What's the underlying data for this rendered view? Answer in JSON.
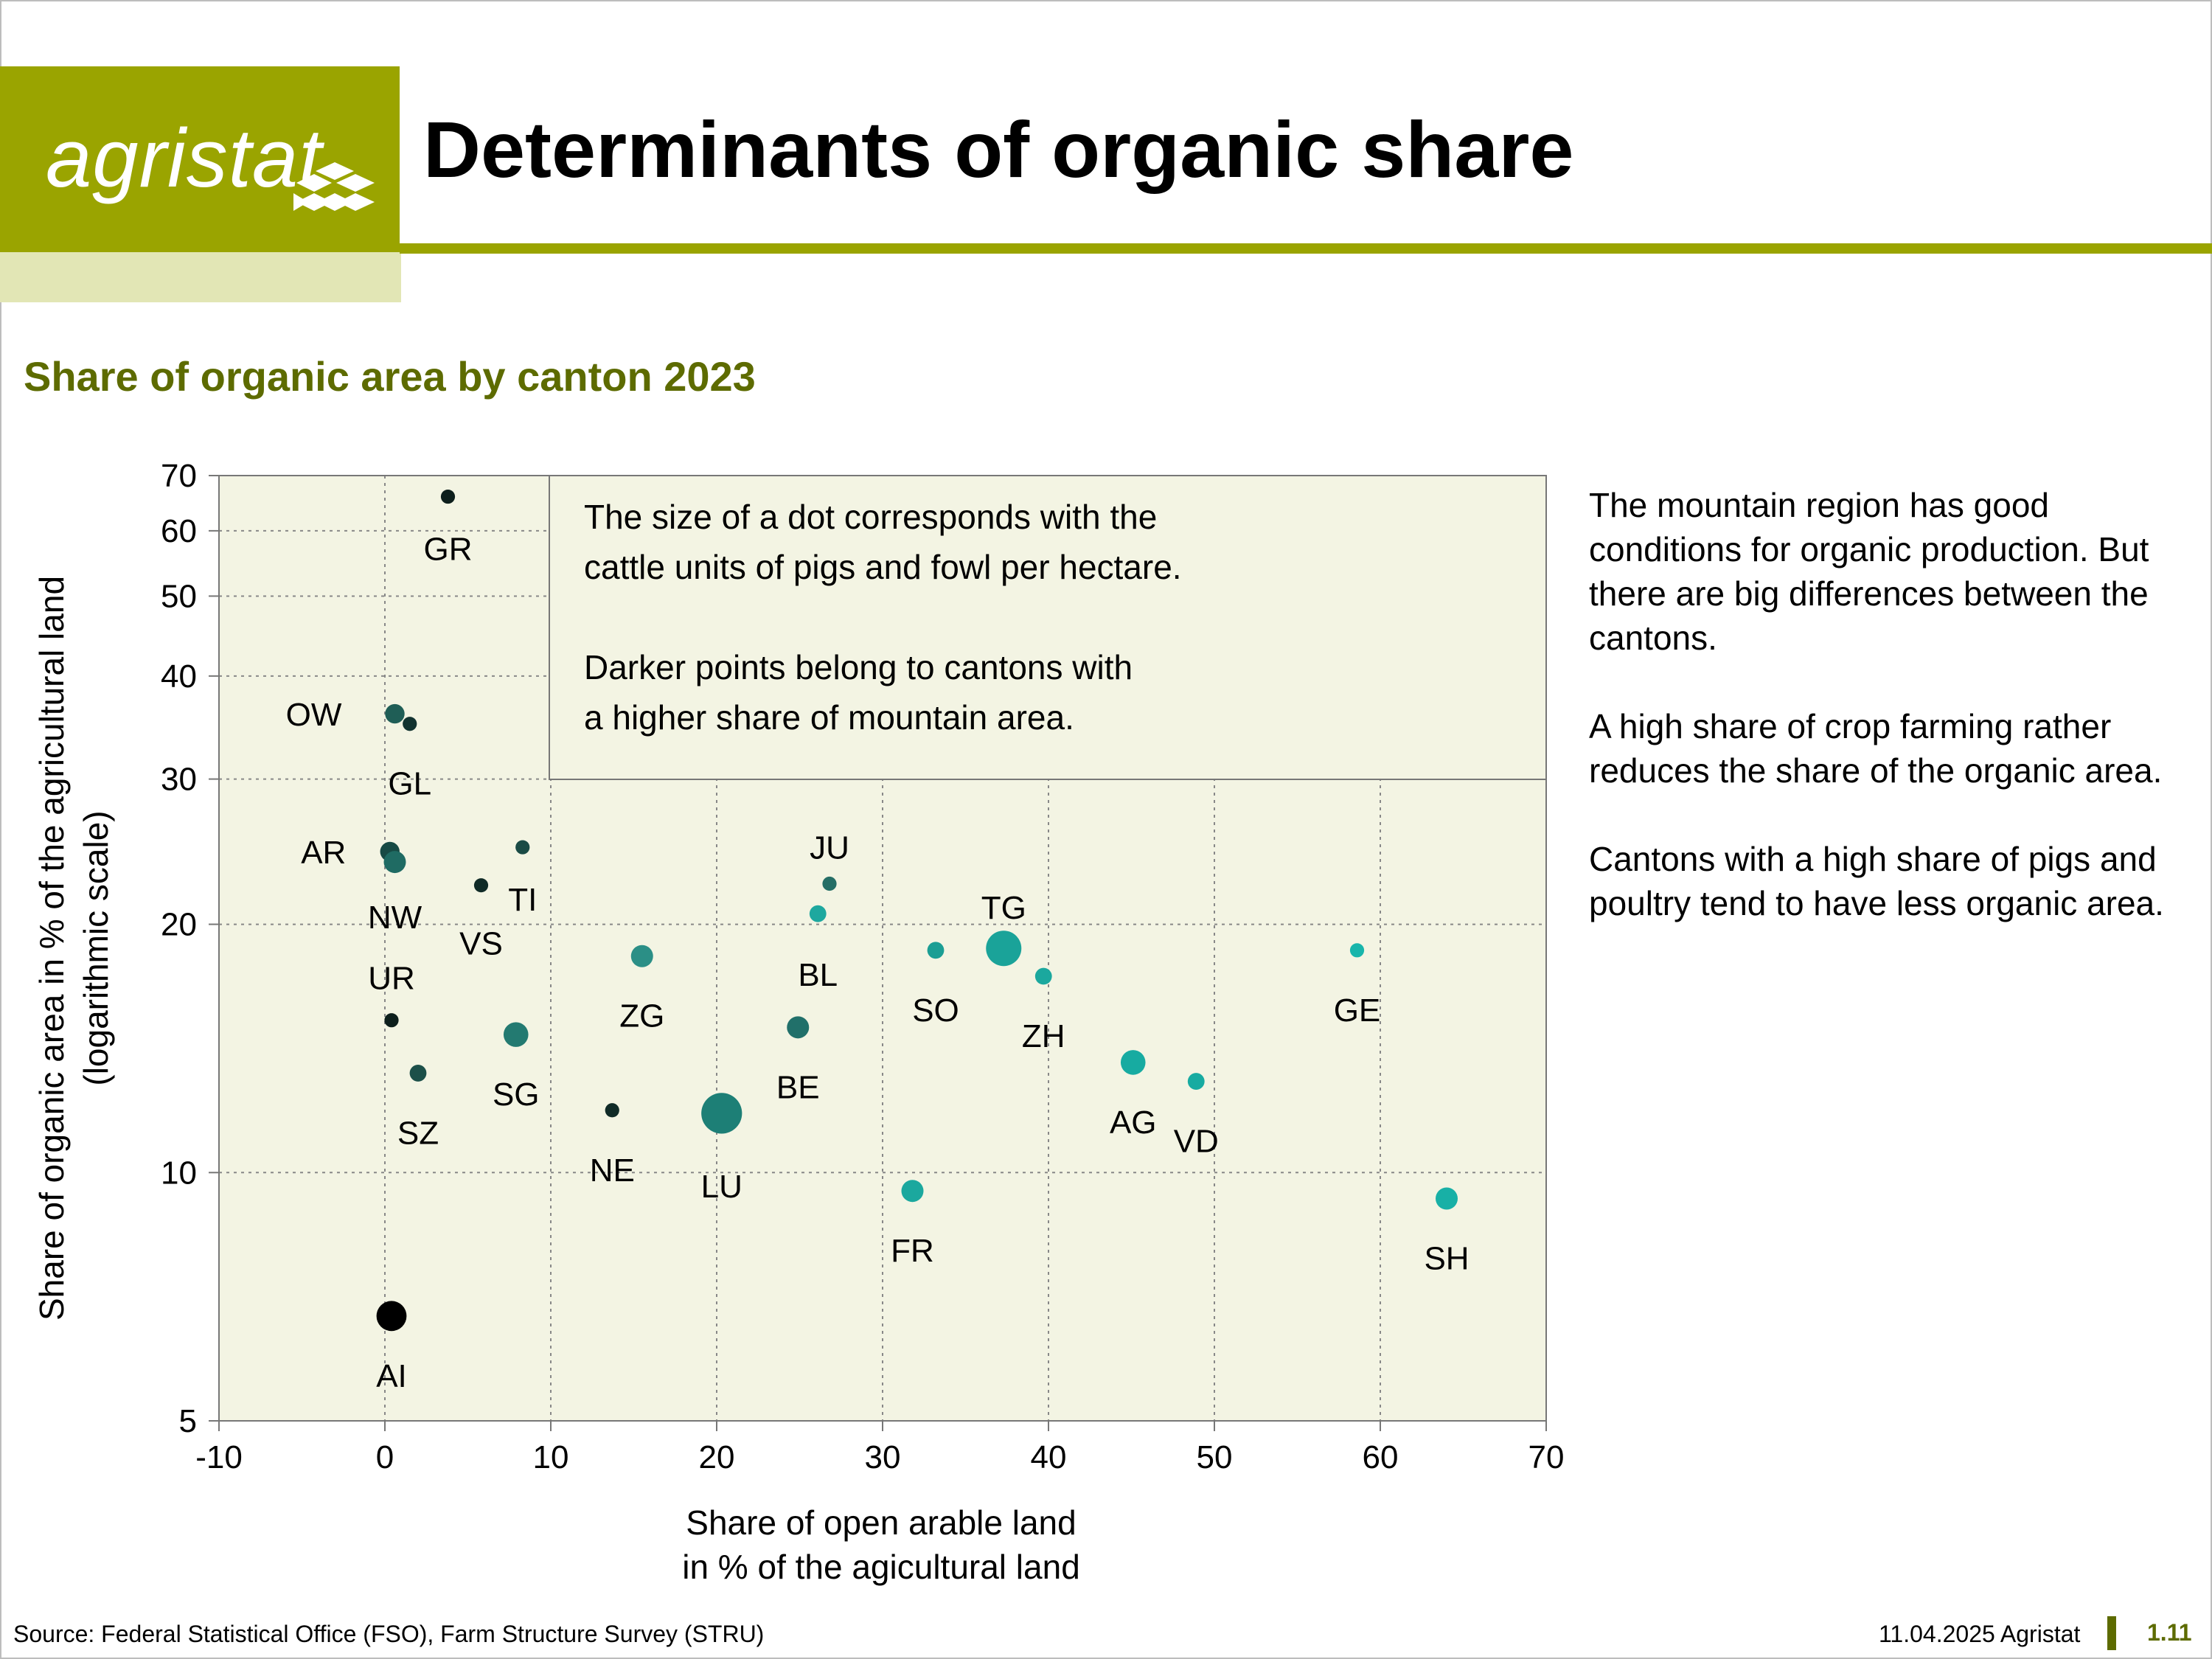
{
  "header": {
    "logo_text": "agristat",
    "title": "Determinants of organic share",
    "brand_color": "#9aa400"
  },
  "subtitle": "Share of organic area by canton 2023",
  "chart_data": {
    "type": "scatter",
    "title": "Share of organic area by canton 2023",
    "xlabel": [
      "Share of open arable land",
      "in % of the agicultural land"
    ],
    "ylabel": [
      "Share of organic area in % of the agricultural land",
      "(logarithmic scale)"
    ],
    "xlim": [
      -10,
      70
    ],
    "ylim": [
      5,
      70
    ],
    "y_scale": "log",
    "xticks": [
      -10,
      0,
      10,
      20,
      30,
      40,
      50,
      60,
      70
    ],
    "yticks": [
      5,
      10,
      20,
      30,
      40,
      50,
      60,
      70
    ],
    "grid": true,
    "plot_bg": "#f3f4e3",
    "annotation": [
      "The size of a dot corresponds with the",
      "cattle units of pigs and fowl per hectare.",
      "",
      "Darker points belong to cantons with",
      "a higher share of mountain area."
    ],
    "size_meaning": "cattle units of pigs and fowl per hectare",
    "color_meaning": "share of mountain area",
    "points": [
      {
        "label": "GR",
        "x": 3.8,
        "y": 66,
        "size": 1,
        "color": "#0d1f1c"
      },
      {
        "label": "OW",
        "x": 0.6,
        "y": 36,
        "size": 2,
        "color": "#1f5e56"
      },
      {
        "label": "GL",
        "x": 1.5,
        "y": 35,
        "size": 1,
        "color": "#123330"
      },
      {
        "label": "AR",
        "x": 0.3,
        "y": 24.5,
        "size": 2,
        "color": "#174a44"
      },
      {
        "label": "NW",
        "x": 0.6,
        "y": 23.8,
        "size": 2.5,
        "color": "#1f6b63"
      },
      {
        "label": "TI",
        "x": 8.3,
        "y": 24.8,
        "size": 1,
        "color": "#1a4b45"
      },
      {
        "label": "VS",
        "x": 5.8,
        "y": 22.3,
        "size": 1,
        "color": "#102b27"
      },
      {
        "label": "UR",
        "x": 0.4,
        "y": 15.3,
        "size": 1,
        "color": "#0d1f1c"
      },
      {
        "label": "SZ",
        "x": 2.0,
        "y": 13.2,
        "size": 1.5,
        "color": "#1c5049"
      },
      {
        "label": "SG",
        "x": 7.9,
        "y": 14.7,
        "size": 3,
        "color": "#237a71"
      },
      {
        "label": "ZG",
        "x": 15.5,
        "y": 18.3,
        "size": 2.5,
        "color": "#2b8f86"
      },
      {
        "label": "NE",
        "x": 13.7,
        "y": 11.9,
        "size": 1,
        "color": "#102b27"
      },
      {
        "label": "LU",
        "x": 20.3,
        "y": 11.8,
        "size": 6,
        "color": "#1d7f76"
      },
      {
        "label": "BE",
        "x": 24.9,
        "y": 15.0,
        "size": 2.5,
        "color": "#21706a"
      },
      {
        "label": "JU",
        "x": 26.8,
        "y": 22.4,
        "size": 1,
        "color": "#256e66"
      },
      {
        "label": "BL",
        "x": 26.1,
        "y": 20.6,
        "size": 1.5,
        "color": "#1ea89f"
      },
      {
        "label": "SO",
        "x": 33.2,
        "y": 18.6,
        "size": 1.5,
        "color": "#1b9e94"
      },
      {
        "label": "TG",
        "x": 37.3,
        "y": 18.7,
        "size": 5,
        "color": "#1aa399"
      },
      {
        "label": "ZH",
        "x": 39.7,
        "y": 17.3,
        "size": 1.5,
        "color": "#1ba89e"
      },
      {
        "label": "FR",
        "x": 31.8,
        "y": 9.5,
        "size": 2.5,
        "color": "#1ba89e"
      },
      {
        "label": "AG",
        "x": 45.1,
        "y": 13.6,
        "size": 3,
        "color": "#17aba1"
      },
      {
        "label": "VD",
        "x": 48.9,
        "y": 12.9,
        "size": 1.5,
        "color": "#17aba1"
      },
      {
        "label": "GE",
        "x": 58.6,
        "y": 18.6,
        "size": 1,
        "color": "#18b5ab"
      },
      {
        "label": "SH",
        "x": 64.0,
        "y": 9.3,
        "size": 2.5,
        "color": "#18b0a6"
      },
      {
        "label": "AI",
        "x": 0.4,
        "y": 6.7,
        "size": 4,
        "color": "#000000"
      }
    ]
  },
  "commentary": [
    "The mountain region has good conditions for organic production. But there are big differences between the cantons.",
    "A high share of crop farming rather reduces the share of the organic area.",
    "Cantons with a high share of pigs and poultry tend to have less organic area."
  ],
  "footer": {
    "source": "Source: Federal Statistical Office (FSO), Farm Structure Survey (STRU)",
    "date": "11.04.2025 Agristat",
    "page": "1.11"
  }
}
